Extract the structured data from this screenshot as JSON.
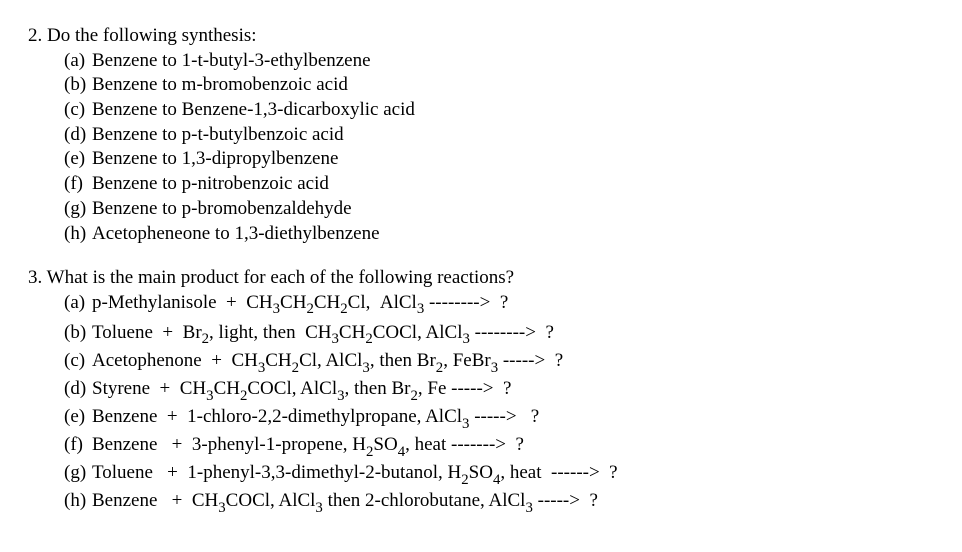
{
  "q2": {
    "number": "2.",
    "stem": "Do the following synthesis:",
    "parts": [
      {
        "label": "(a)",
        "text": "Benzene to 1-t-butyl-3-ethylbenzene"
      },
      {
        "label": "(b)",
        "text": "Benzene to m-bromobenzoic acid"
      },
      {
        "label": "(c)",
        "text": "Benzene to Benzene-1,3-dicarboxylic acid"
      },
      {
        "label": "(d)",
        "text": "Benzene to p-t-butylbenzoic acid"
      },
      {
        "label": "(e)",
        "text": "Benzene to 1,3-dipropylbenzene"
      },
      {
        "label": "(f)",
        "text": "Benzene to p-nitrobenzoic acid"
      },
      {
        "label": "(g)",
        "text": "Benzene to p-bromobenzaldehyde"
      },
      {
        "label": "(h)",
        "text": "Acetopheneone to 1,3-diethylbenzene"
      }
    ]
  },
  "q3": {
    "number": "3.",
    "stem": "What is the main product for each of the following reactions?",
    "parts": [
      {
        "label": "(a)",
        "html": "p-Methylanisole&nbsp;&nbsp;+&nbsp;&nbsp;CH<span class='sub'>3</span>CH<span class='sub'>2</span>CH<span class='sub'>2</span>Cl,&nbsp;&nbsp;AlCl<span class='sub'>3</span> --------&gt;&nbsp;&nbsp;?"
      },
      {
        "label": "(b)",
        "html": "Toluene&nbsp;&nbsp;+&nbsp;&nbsp;Br<span class='sub'>2</span>, light, then&nbsp;&nbsp;CH<span class='sub'>3</span>CH<span class='sub'>2</span>COCl, AlCl<span class='sub'>3</span> --------&gt;&nbsp;&nbsp;?"
      },
      {
        "label": "(c)",
        "html": "Acetophenone&nbsp;&nbsp;+&nbsp;&nbsp;CH<span class='sub'>3</span>CH<span class='sub'>2</span>Cl, AlCl<span class='sub'>3</span>, then Br<span class='sub'>2</span>, FeBr<span class='sub'>3</span> -----&gt;&nbsp;&nbsp;?"
      },
      {
        "label": "(d)",
        "html": "Styrene&nbsp;&nbsp;+&nbsp;&nbsp;CH<span class='sub'>3</span>CH<span class='sub'>2</span>COCl, AlCl<span class='sub'>3</span>, then Br<span class='sub'>2</span>, Fe -----&gt;&nbsp;&nbsp;?"
      },
      {
        "label": "(e)",
        "html": "Benzene&nbsp;&nbsp;+&nbsp;&nbsp;1-chloro-2,2-dimethylpropane, AlCl<span class='sub'>3</span> -----&gt;&nbsp;&nbsp;&nbsp;?"
      },
      {
        "label": "(f)",
        "html": "Benzene&nbsp;&nbsp;&nbsp;+&nbsp;&nbsp;3-phenyl-1-propene, H<span class='sub'>2</span>SO<span class='sub'>4</span>, heat -------&gt;&nbsp;&nbsp;?"
      },
      {
        "label": "(g)",
        "html": "Toluene&nbsp;&nbsp;&nbsp;+&nbsp;&nbsp;1-phenyl-3,3-dimethyl-2-butanol, H<span class='sub'>2</span>SO<span class='sub'>4</span>, heat&nbsp;&nbsp;------&gt;&nbsp;&nbsp;?"
      },
      {
        "label": "(h)",
        "html": "Benzene&nbsp;&nbsp;&nbsp;+&nbsp;&nbsp;CH<span class='sub'>3</span>COCl, AlCl<span class='sub'>3</span> then 2-chlorobutane, AlCl<span class='sub'>3</span> -----&gt;&nbsp;&nbsp;?"
      }
    ]
  },
  "style": {
    "font_family": "Times New Roman",
    "font_size_pt": 14,
    "text_color": "#000000",
    "background_color": "#ffffff"
  }
}
